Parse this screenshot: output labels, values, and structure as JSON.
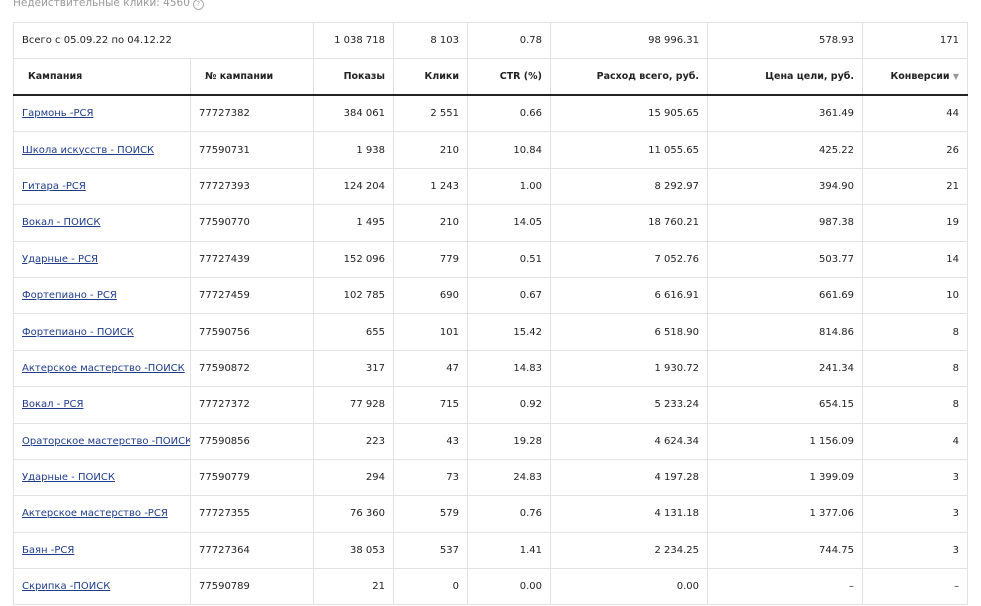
{
  "invalid_clicks": "Недействительные клики: 4560",
  "total": {
    "label": "Всего с 05.09.22 по 04.12.22",
    "impressions": "1 038 718",
    "clicks": "8 103",
    "ctr": "0.78",
    "spend": "98 996.31",
    "goal_cost": "578.93",
    "conversions": "171"
  },
  "columns": [
    "Кампания",
    "№ кампании",
    "Показы",
    "Клики",
    "CTR (%)",
    "Расход всего, руб.",
    "Цена цели, руб.",
    "Конверсии"
  ],
  "sort_indicator": "▼",
  "rows": [
    [
      "Гармонь -РСЯ",
      "77727382",
      "384 061",
      "2 551",
      "0.66",
      "15 905.65",
      "361.49",
      "44"
    ],
    [
      "Школа искусств - ПОИСК",
      "77590731",
      "1 938",
      "210",
      "10.84",
      "11 055.65",
      "425.22",
      "26"
    ],
    [
      "Гитара -РСЯ",
      "77727393",
      "124 204",
      "1 243",
      "1.00",
      "8 292.97",
      "394.90",
      "21"
    ],
    [
      "Вокал - ПОИСК",
      "77590770",
      "1 495",
      "210",
      "14.05",
      "18 760.21",
      "987.38",
      "19"
    ],
    [
      "Ударные - РСЯ",
      "77727439",
      "152 096",
      "779",
      "0.51",
      "7 052.76",
      "503.77",
      "14"
    ],
    [
      "Фортепиано - РСЯ",
      "77727459",
      "102 785",
      "690",
      "0.67",
      "6 616.91",
      "661.69",
      "10"
    ],
    [
      "Фортепиано - ПОИСК",
      "77590756",
      "655",
      "101",
      "15.42",
      "6 518.90",
      "814.86",
      "8"
    ],
    [
      "Актерское мастерство -ПОИСК",
      "77590872",
      "317",
      "47",
      "14.83",
      "1 930.72",
      "241.34",
      "8"
    ],
    [
      "Вокал - РСЯ",
      "77727372",
      "77 928",
      "715",
      "0.92",
      "5 233.24",
      "654.15",
      "8"
    ],
    [
      "Ораторское мастерство -ПОИСК",
      "77590856",
      "223",
      "43",
      "19.28",
      "4 624.34",
      "1 156.09",
      "4"
    ],
    [
      "Ударные - ПОИСК",
      "77590779",
      "294",
      "73",
      "24.83",
      "4 197.28",
      "1 399.09",
      "3"
    ],
    [
      "Актерское мастерство -РСЯ",
      "77727355",
      "76 360",
      "579",
      "0.76",
      "4 131.18",
      "1 377.06",
      "3"
    ],
    [
      "Баян -РСЯ",
      "77727364",
      "38 053",
      "537",
      "1.41",
      "2 234.25",
      "744.75",
      "3"
    ],
    [
      "Скрипка -ПОИСК",
      "77590789",
      "21",
      "0",
      "0.00",
      "0.00",
      "–",
      "–"
    ]
  ]
}
